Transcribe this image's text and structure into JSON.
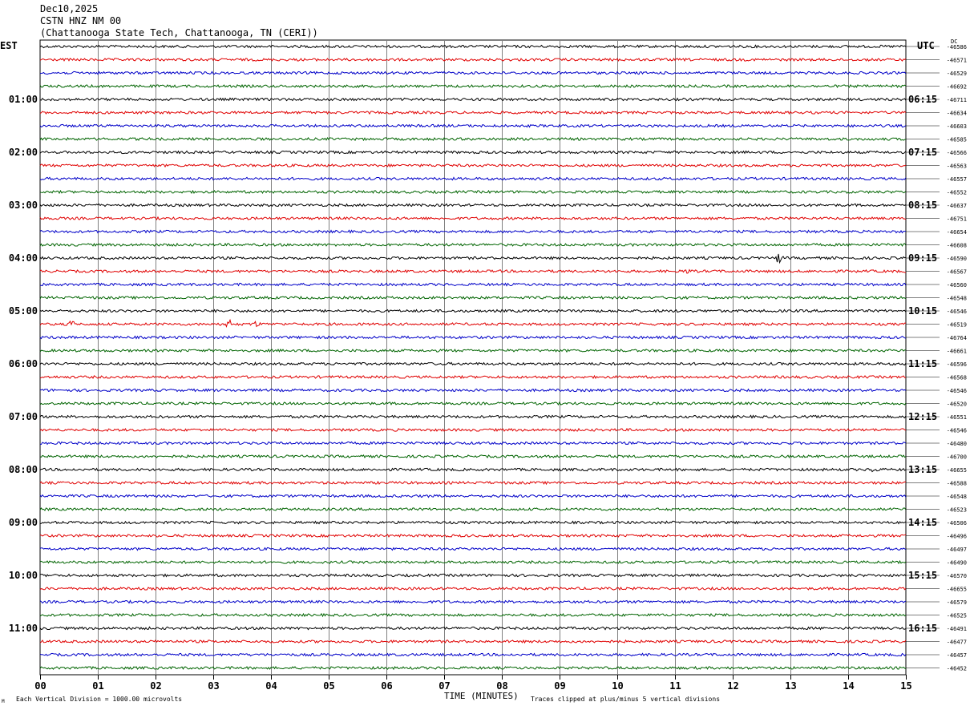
{
  "header": {
    "date": "Dec10,2025",
    "station": "CSTN HNZ NM 00",
    "location": "(Chattanooga State Tech, Chattanooga, TN (CERI))"
  },
  "labels": {
    "left_tz": "EST",
    "right_tz": "UTC",
    "dc": "DC",
    "footer_left": "Each Vertical Division = 1000.00 microvolts",
    "footer_right": "Traces clipped at plus/minus 5 vertical divisions",
    "corner_mark": "M"
  },
  "colors": {
    "trace_cycle": [
      "#000000",
      "#e00000",
      "#0000c8",
      "#006400"
    ],
    "grid": "#808080"
  },
  "chart_data": {
    "type": "line",
    "title": "CSTN HNZ NM 00",
    "xlabel": "TIME (MINUTES)",
    "xlim": [
      0,
      15
    ],
    "x_ticks": [
      "00",
      "01",
      "02",
      "03",
      "04",
      "05",
      "06",
      "07",
      "08",
      "09",
      "10",
      "11",
      "12",
      "13",
      "14",
      "15"
    ],
    "left_hour_labels": [
      "01:00",
      "02:00",
      "03:00",
      "04:00",
      "05:00",
      "06:00",
      "07:00",
      "08:00",
      "09:00",
      "10:00",
      "11:00"
    ],
    "right_hour_labels": [
      "06:15",
      "07:15",
      "08:15",
      "09:15",
      "10:15",
      "11:15",
      "12:15",
      "13:15",
      "14:15",
      "15:15",
      "16:15"
    ],
    "hour_label_rows": [
      4,
      8,
      12,
      16,
      20,
      24,
      28,
      32,
      36,
      40,
      44
    ],
    "dc_offsets": [
      "-46586",
      "-46571",
      "-46529",
      "-46692",
      "-46711",
      "-46634",
      "-46603",
      "-46585",
      "-46566",
      "-46563",
      "-46557",
      "-46552",
      "-46637",
      "-46751",
      "-46654",
      "-46608",
      "-46590",
      "-46567",
      "-46560",
      "-46548",
      "-46546",
      "-46519",
      "-46764",
      "-46661",
      "-46596",
      "-46568",
      "-46546",
      "-46520",
      "-46551",
      "-46546",
      "-46480",
      "-46700",
      "-46655",
      "-46588",
      "-46548",
      "-46523",
      "-46506",
      "-46496",
      "-46497",
      "-46490",
      "-46570",
      "-46655",
      "-46579",
      "-46525",
      "-46491",
      "-46477",
      "-46457",
      "-46452"
    ],
    "events": [
      {
        "row": 16,
        "minute": 12.8,
        "amplitude": 7
      },
      {
        "row": 17,
        "minute": 11.2,
        "amplitude": 3
      },
      {
        "row": 21,
        "minute": 0.55,
        "amplitude": 8
      },
      {
        "row": 21,
        "minute": 3.25,
        "amplitude": 8
      },
      {
        "row": 21,
        "minute": 3.75,
        "amplitude": 4
      },
      {
        "row": 32,
        "minute": 14.45,
        "amplitude": 3
      }
    ]
  }
}
